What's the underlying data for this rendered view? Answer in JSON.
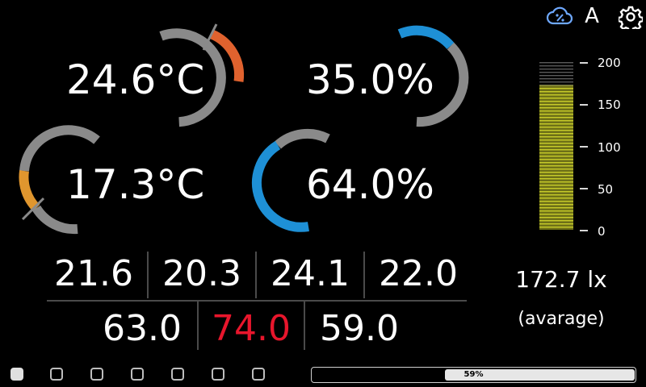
{
  "header": {
    "cloud_icon": "cloud-percent-icon",
    "mode_label": "A",
    "settings_icon": "gear-icon"
  },
  "gauges": {
    "temp1": "24.6°C",
    "hum1": "35.0%",
    "temp2": "17.3°C",
    "hum2": "64.0%"
  },
  "table": {
    "row1": [
      "21.6",
      "20.3",
      "24.1",
      "22.0"
    ],
    "row2": [
      "63.0",
      "74.0",
      "59.0"
    ],
    "highlight_color": "#e8162c"
  },
  "light_meter": {
    "scale": [
      "200",
      "150",
      "100",
      "50",
      "0"
    ],
    "value_text": "172.7 lx",
    "caption": "(avarage)",
    "fill_color": "#c8cc2a",
    "level": 172.7,
    "max": 200
  },
  "footer": {
    "progress_label": "59%",
    "progress": 0.59,
    "checkboxes": [
      true,
      false,
      false,
      false,
      false,
      false,
      false
    ]
  },
  "colors": {
    "accent_blue": "#1e90d6",
    "accent_orange": "#e0622e",
    "track_gray": "#8a8a8a"
  }
}
